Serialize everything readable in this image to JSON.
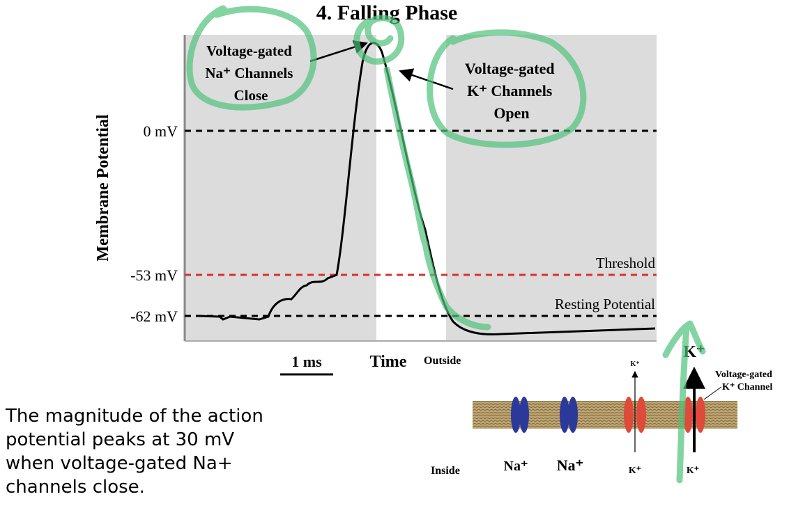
{
  "title": "4. Falling Phase",
  "graph": {
    "y_axis_label": "Membrane Potential",
    "levels": [
      "0 mV",
      "-53 mV",
      "-62 mV"
    ],
    "threshold_label": "Threshold",
    "resting_label": "Resting Potential",
    "na_note": [
      "Voltage-gated",
      "Na⁺ Channels",
      "Close"
    ],
    "k_note": [
      "Voltage-gated",
      "K⁺ Channels",
      "Open"
    ],
    "scale_label": "1 ms",
    "x_axis_label": "Time"
  },
  "membrane": {
    "outside": "Outside",
    "inside": "Inside",
    "na_labels": [
      "Na⁺",
      "Na⁺"
    ],
    "k_top_small": "K⁺",
    "k_top_big": "K⁺",
    "k_bottom": [
      "K⁺",
      "K⁺"
    ],
    "channel_note": [
      "Voltage-gated",
      "K⁺ Channel"
    ]
  },
  "caption": [
    "The magnitude of the action",
    "potential peaks at 30 mV",
    "when voltage-gated Na+",
    "channels close."
  ]
}
